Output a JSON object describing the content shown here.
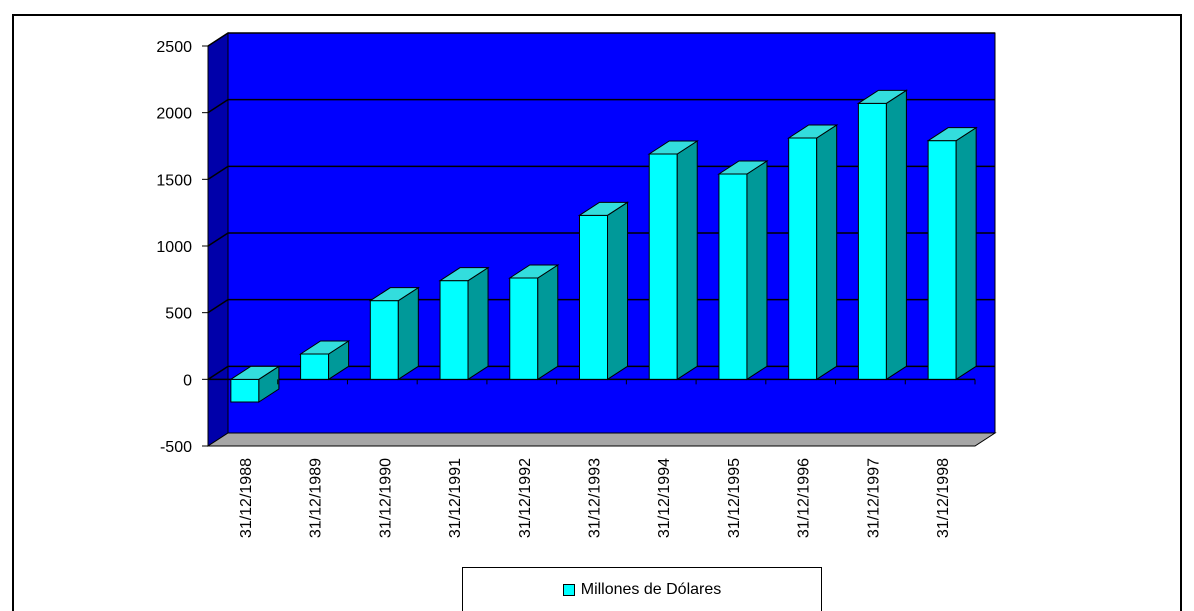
{
  "chart_data": {
    "type": "bar",
    "style": "3d-column",
    "categories": [
      "31/12/1988",
      "31/12/1989",
      "31/12/1990",
      "31/12/1991",
      "31/12/1992",
      "31/12/1993",
      "31/12/1994",
      "31/12/1995",
      "31/12/1996",
      "31/12/1997",
      "31/12/1998"
    ],
    "series": [
      {
        "name": "Millones de Dólares",
        "values": [
          -170,
          190,
          590,
          740,
          760,
          1230,
          1690,
          1540,
          1810,
          2070,
          1790
        ]
      }
    ],
    "ylim": [
      -500,
      2500
    ],
    "yticks": [
      -500,
      0,
      500,
      1000,
      1500,
      2000,
      2500
    ],
    "ytick_labels": [
      "-500",
      "0",
      "500",
      "1000",
      "1500",
      "2000",
      "2500"
    ],
    "grid": true,
    "legend_position": "bottom",
    "colors": {
      "wall": "#0000ff",
      "side_wall": "#0000aa",
      "floor": "#a6a6a6",
      "bar_front": "#00ffff",
      "bar_top": "#33dddd",
      "bar_side": "#009999",
      "gridline": "#000000"
    }
  }
}
